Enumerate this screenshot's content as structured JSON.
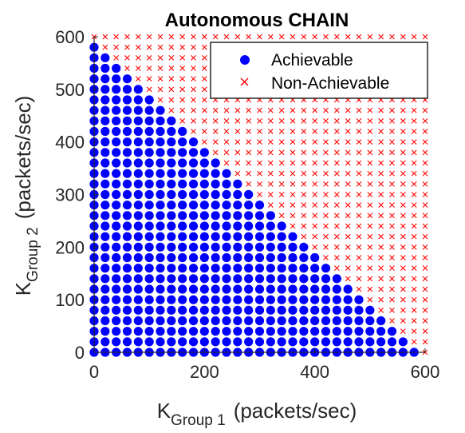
{
  "chart_data": {
    "type": "scatter",
    "title": "Autonomous CHAIN",
    "xlabel": {
      "main": "K",
      "sub": "Group 1",
      "unit": "(packets/sec)"
    },
    "ylabel": {
      "main": "K",
      "sub": "Group 2",
      "unit": "(packets/sec)"
    },
    "xlim": [
      0,
      600
    ],
    "ylim": [
      0,
      600
    ],
    "xticks": [
      0,
      200,
      400,
      600
    ],
    "yticks": [
      0,
      100,
      200,
      300,
      400,
      500,
      600
    ],
    "grid_step": 20,
    "grid": false,
    "legend_position": "top-right",
    "series": [
      {
        "name": "Achievable",
        "marker": "dot",
        "color": "#0000ff",
        "boundary_max_y_by_x": [
          [
            0,
            580
          ],
          [
            20,
            560
          ],
          [
            40,
            540
          ],
          [
            60,
            520
          ],
          [
            80,
            500
          ],
          [
            100,
            480
          ],
          [
            120,
            460
          ],
          [
            140,
            440
          ],
          [
            160,
            420
          ],
          [
            180,
            400
          ],
          [
            200,
            380
          ],
          [
            220,
            360
          ],
          [
            240,
            340
          ],
          [
            260,
            320
          ],
          [
            280,
            300
          ],
          [
            300,
            280
          ],
          [
            320,
            260
          ],
          [
            340,
            240
          ],
          [
            360,
            220
          ],
          [
            380,
            200
          ],
          [
            400,
            180
          ],
          [
            420,
            160
          ],
          [
            440,
            140
          ],
          [
            460,
            120
          ],
          [
            480,
            100
          ],
          [
            500,
            80
          ],
          [
            520,
            60
          ],
          [
            540,
            40
          ],
          [
            560,
            20
          ],
          [
            580,
            0
          ]
        ]
      },
      {
        "name": "Non-Achievable",
        "marker": "x",
        "color": "#ff0000",
        "rule": "all grid points not achievable"
      }
    ]
  }
}
